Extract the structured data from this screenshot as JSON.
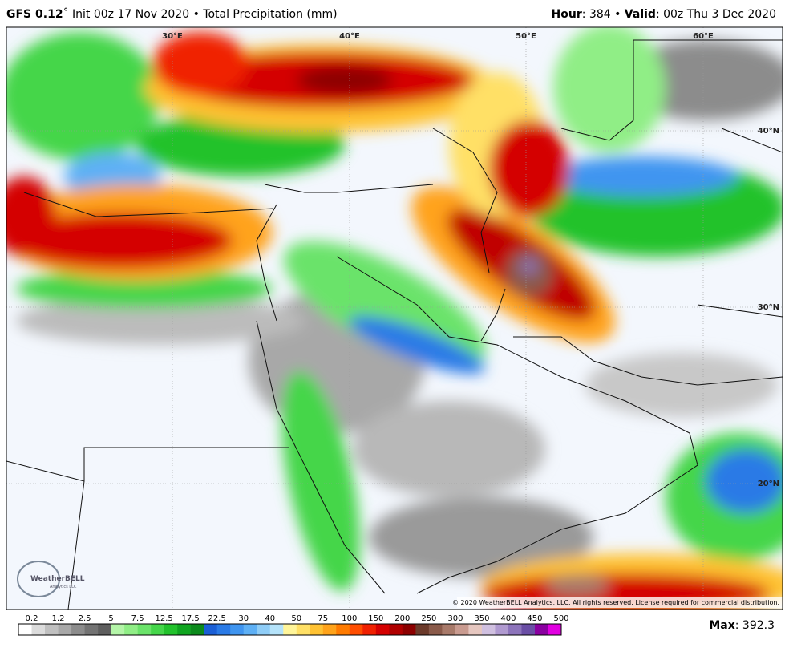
{
  "header": {
    "left": [
      {
        "text": "GFS 0.12",
        "bold": true
      },
      {
        "text": "˚ Init 00z 17 Nov 2020 • Total Precipitation (mm)"
      }
    ],
    "right": [
      {
        "text": "Hour",
        "bold": true
      },
      {
        "text": ": 384 • "
      },
      {
        "text": "Valid",
        "bold": true
      },
      {
        "text": ": 00z Thu 3 Dec 2020"
      }
    ]
  },
  "map": {
    "lon_labels": [
      "30°E",
      "40°E",
      "50°E",
      "60°E"
    ],
    "lat_labels": [
      "40°N",
      "30°N",
      "20°N"
    ],
    "copyright": "© 2020 WeatherBELL Analytics, LLC. All rights reserved. License required for commercial distribution.",
    "logo": "WeatherBELL",
    "logo_sub": "Analytics LLC"
  },
  "legend": {
    "ticks": [
      0.2,
      1.2,
      2.5,
      5,
      7.5,
      12.5,
      17.5,
      22.5,
      30,
      40,
      50,
      75,
      100,
      150,
      200,
      250,
      300,
      350,
      400,
      450,
      500
    ],
    "colors": [
      "#ffffff",
      "#dcdcdc",
      "#c0c0c0",
      "#a8a8a8",
      "#8c8c8c",
      "#737373",
      "#5e5e5e",
      "#b4f5a8",
      "#90ee86",
      "#6be36a",
      "#45d64a",
      "#22c22c",
      "#10a520",
      "#0c8a1c",
      "#1b5fd6",
      "#2a7ae6",
      "#3f95f0",
      "#5eb0f5",
      "#8fcdf7",
      "#b5e3fa",
      "#fff59a",
      "#ffe066",
      "#ffc233",
      "#ffa31a",
      "#ff7b00",
      "#ff4d00",
      "#f02000",
      "#d40000",
      "#b00000",
      "#8c0000",
      "#6b3a2a",
      "#8a5a4a",
      "#a87a6a",
      "#c99b90",
      "#e6c7c0",
      "#d0c0e0",
      "#b09ad0",
      "#8d74bb",
      "#6a4ea5",
      "#8a00a0",
      "#e100e1"
    ],
    "max": [
      {
        "text": "Max",
        "bold": true
      },
      {
        "text": ": 392.3"
      }
    ]
  }
}
